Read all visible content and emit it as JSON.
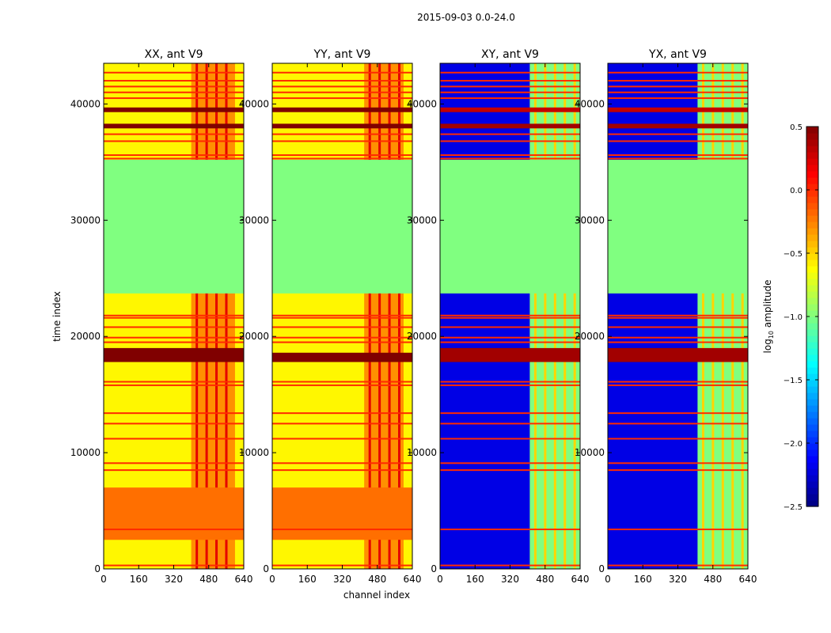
{
  "chart_data": {
    "type": "heatmap",
    "suptitle": "2015-09-03 0.0-24.0",
    "xlabel": "channel index",
    "ylabel": "time index",
    "xlim": [
      0,
      640
    ],
    "ylim": [
      0,
      43500
    ],
    "xticks": [
      0,
      160,
      320,
      480,
      640
    ],
    "yticks": [
      0,
      10000,
      20000,
      30000,
      40000
    ],
    "colorbar": {
      "label": "log10 amplitude",
      "label_base": "log",
      "label_sub": "10",
      "label_rest": " amplitude",
      "range": [
        -2.5,
        0.5
      ],
      "ticks": [
        0.5,
        0.0,
        -0.5,
        -1.0,
        -1.5,
        -2.0,
        -2.5
      ],
      "tick_labels": [
        "0.5",
        "0.0",
        "−0.5",
        "−1.0",
        "−1.5",
        "−2.0",
        "−2.5"
      ],
      "colormap": "jet"
    },
    "panels": [
      {
        "title": "XX, ant V9",
        "base": -0.6,
        "high_band": [
          400,
          600
        ],
        "high": -0.3,
        "flag_block": [
          23700,
          35200
        ],
        "flag_value": -1.0,
        "strong_rows": [
          [
            17800,
            19000,
            0.5
          ],
          [
            39300,
            39700,
            0.5
          ],
          [
            37900,
            38300,
            0.5
          ],
          [
            2500,
            7000,
            -0.2
          ]
        ],
        "line_rows": [
          300,
          3400,
          8500,
          9100,
          11200,
          12500,
          13400,
          15800,
          16100,
          19500,
          19900,
          20800,
          21600,
          21800,
          35300,
          35600,
          36800,
          37400,
          40500,
          41000,
          41500,
          42000,
          42700
        ]
      },
      {
        "title": "YY, ant V9",
        "base": -0.6,
        "high_band": [
          420,
          600
        ],
        "high": -0.3,
        "flag_block": [
          23700,
          35200
        ],
        "flag_value": -1.0,
        "strong_rows": [
          [
            17800,
            18600,
            0.5
          ],
          [
            39300,
            39700,
            0.5
          ],
          [
            37900,
            38300,
            0.5
          ],
          [
            2500,
            7000,
            -0.2
          ]
        ],
        "line_rows": [
          300,
          3400,
          8500,
          9100,
          11200,
          12500,
          13400,
          15800,
          16100,
          19500,
          19900,
          20800,
          21600,
          21800,
          35300,
          35600,
          36800,
          37400,
          40500,
          41000,
          41500,
          42000,
          42700
        ]
      },
      {
        "title": "XY, ant V9",
        "base": -2.2,
        "high_band": [
          410,
          640
        ],
        "high": -1.0,
        "flag_block": [
          23700,
          35200
        ],
        "flag_value": -1.0,
        "strong_rows": [
          [
            17800,
            19000,
            0.4
          ],
          [
            39300,
            39700,
            0.3
          ],
          [
            37900,
            38300,
            0.4
          ]
        ],
        "line_rows": [
          300,
          3400,
          8500,
          9100,
          11200,
          12500,
          13400,
          15800,
          16100,
          19500,
          19900,
          20800,
          21600,
          21800,
          35300,
          35600,
          36800,
          37400,
          40500,
          41000,
          41500,
          42000,
          42700
        ]
      },
      {
        "title": "YX, ant V9",
        "base": -2.2,
        "high_band": [
          410,
          640
        ],
        "high": -1.0,
        "flag_block": [
          23700,
          35200
        ],
        "flag_value": -1.0,
        "strong_rows": [
          [
            17800,
            19000,
            0.4
          ],
          [
            39300,
            39700,
            0.3
          ],
          [
            37900,
            38300,
            0.4
          ]
        ],
        "line_rows": [
          300,
          3400,
          8500,
          9100,
          11200,
          12500,
          13400,
          15800,
          16100,
          19500,
          19900,
          20800,
          21600,
          21800,
          35300,
          35600,
          36800,
          37400,
          40500,
          41000,
          41500,
          42000,
          42700
        ]
      }
    ]
  }
}
